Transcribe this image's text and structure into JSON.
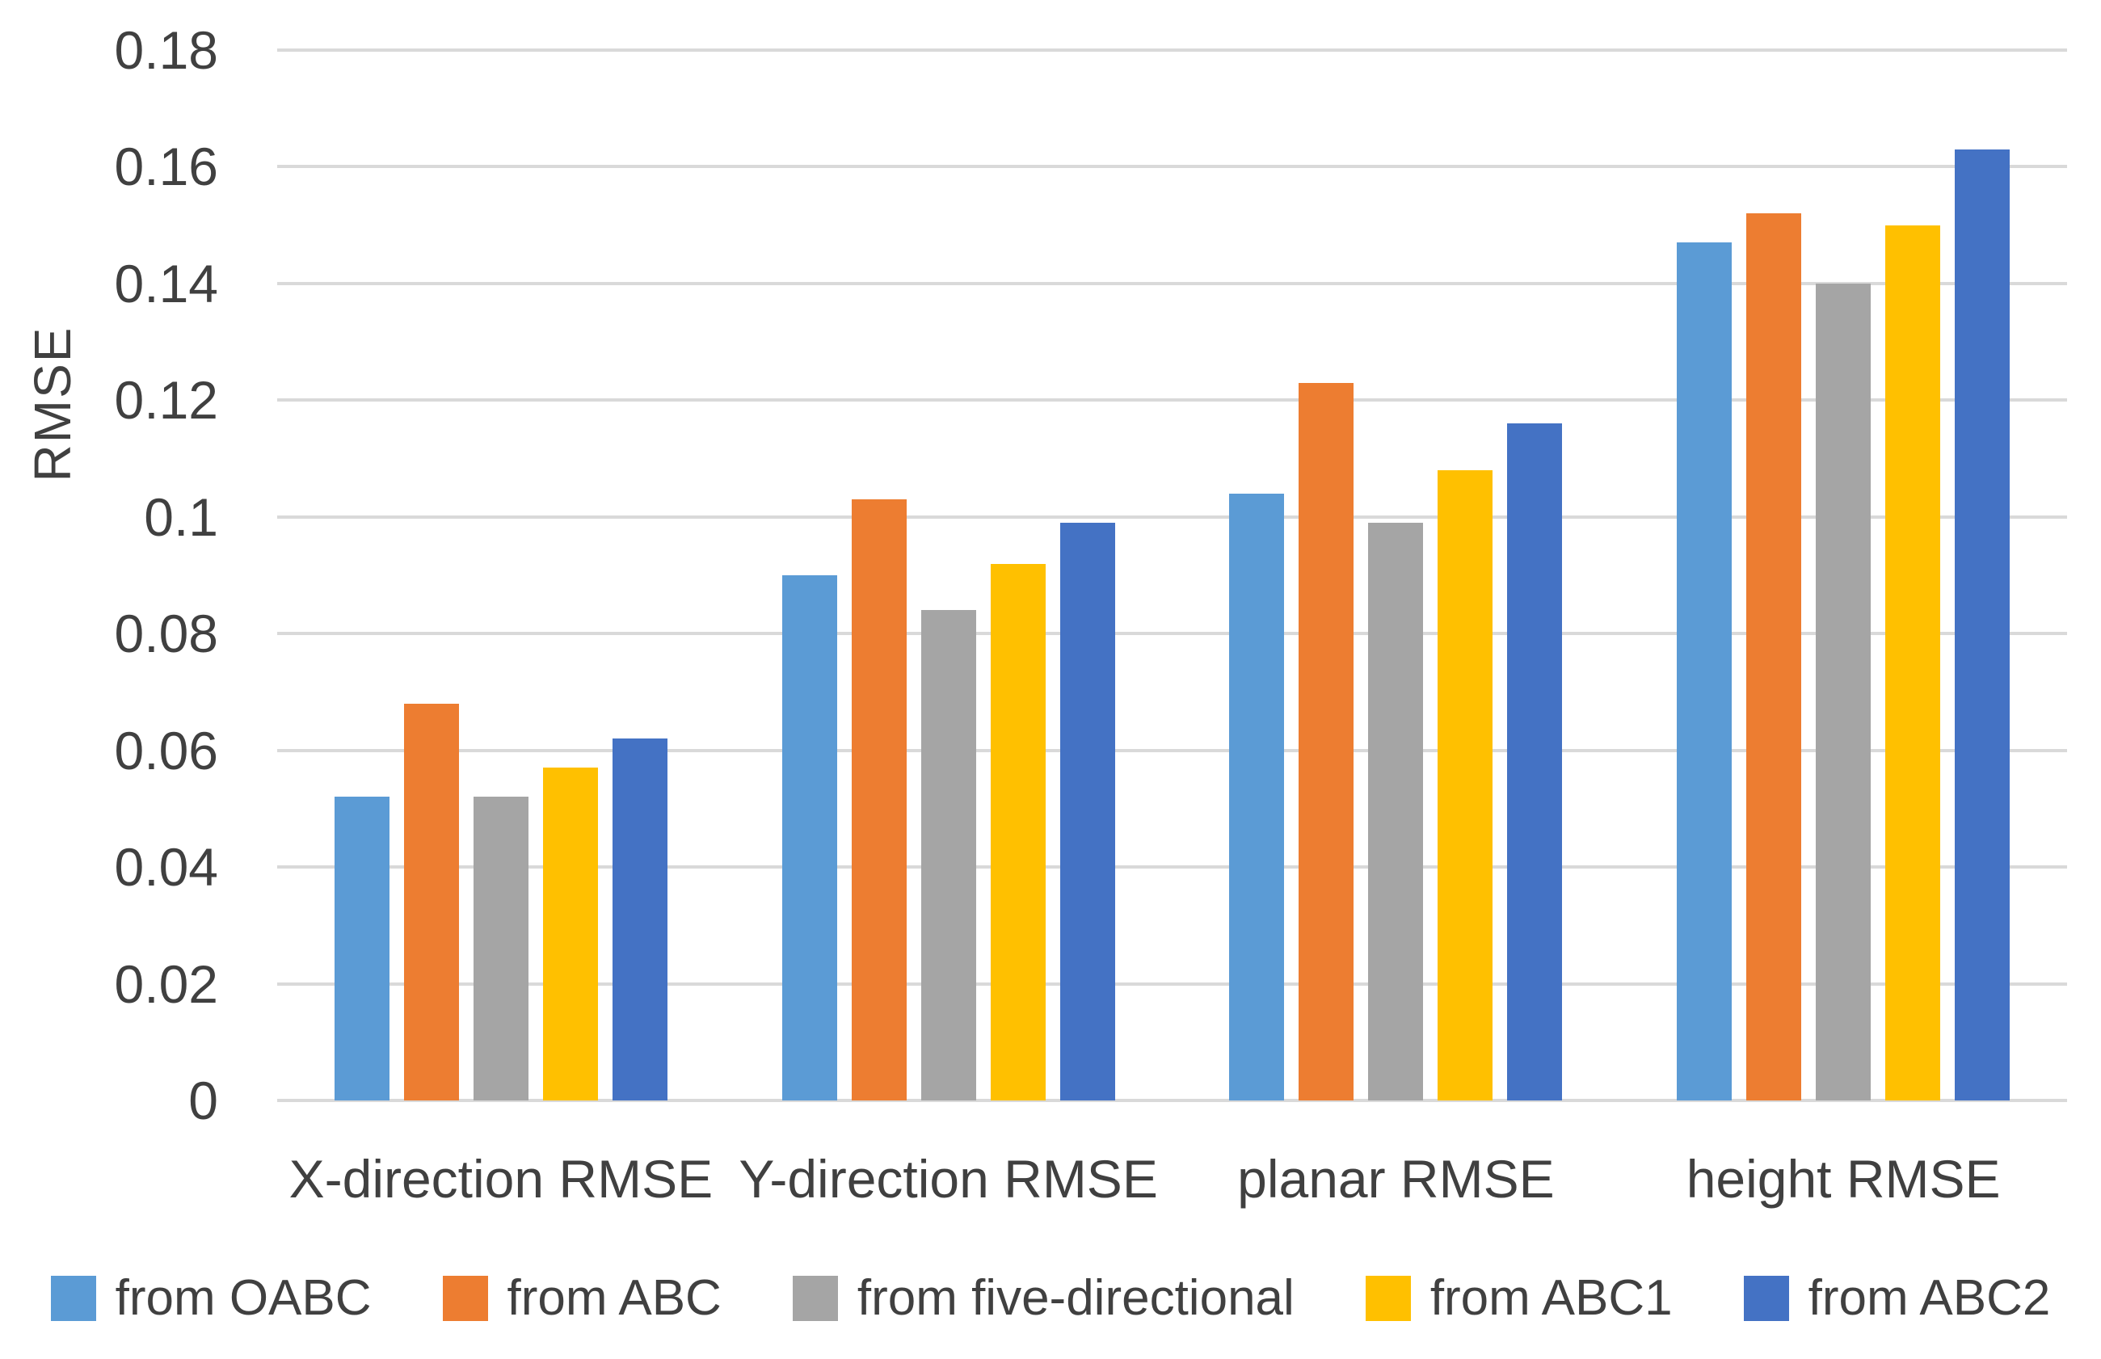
{
  "chart_data": {
    "type": "bar",
    "title": "",
    "xlabel": "",
    "ylabel": "RMSE",
    "ylim": [
      0,
      0.18
    ],
    "ytick_step": 0.02,
    "ytick_labels": [
      "0",
      "0.02",
      "0.04",
      "0.06",
      "0.08",
      "0.1",
      "0.12",
      "0.14",
      "0.16",
      "0.18"
    ],
    "grid": true,
    "legend_position": "bottom",
    "categories": [
      "X-direction RMSE",
      "Y-direction RMSE",
      "planar RMSE",
      "height RMSE"
    ],
    "series": [
      {
        "name": "from OABC",
        "color": "#5B9BD5",
        "values": [
          0.052,
          0.09,
          0.104,
          0.147
        ]
      },
      {
        "name": "from ABC",
        "color": "#ED7D31",
        "values": [
          0.068,
          0.103,
          0.123,
          0.152
        ]
      },
      {
        "name": "from five-directional",
        "color": "#A5A5A5",
        "values": [
          0.052,
          0.084,
          0.099,
          0.14
        ]
      },
      {
        "name": "from ABC1",
        "color": "#FFC000",
        "values": [
          0.057,
          0.092,
          0.108,
          0.15
        ]
      },
      {
        "name": "from ABC2",
        "color": "#4472C4",
        "values": [
          0.062,
          0.099,
          0.116,
          0.163
        ]
      }
    ],
    "colors": {
      "gridline": "#d9d9d9",
      "text": "#404040",
      "background": "#ffffff"
    }
  }
}
